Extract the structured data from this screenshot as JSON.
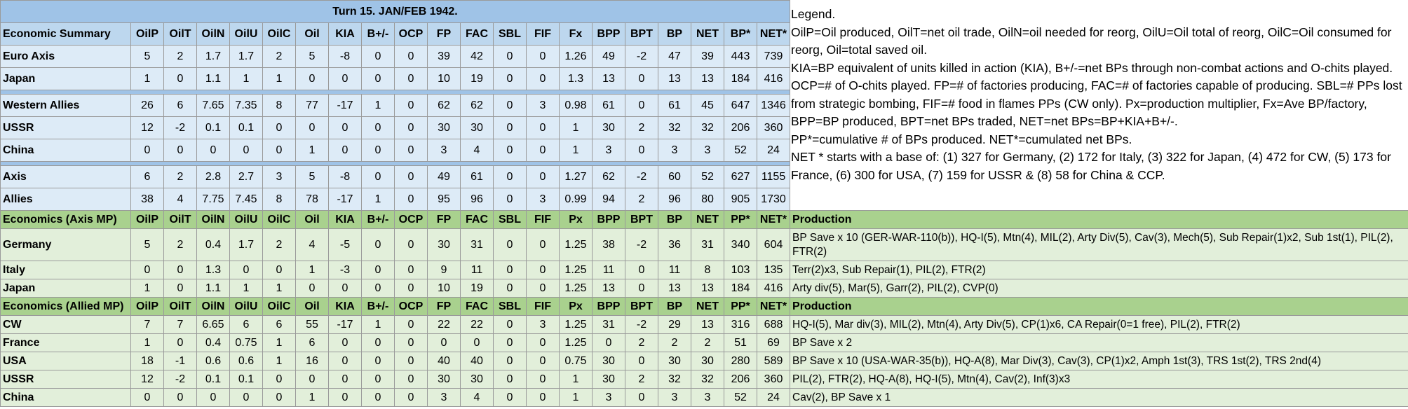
{
  "title": "Turn 15.  JAN/FEB 1942.",
  "legend": {
    "heading": "Legend.",
    "lines": [
      "OilP=Oil produced, OilT=net oil trade, OilN=oil needed for reorg, OilU=Oil total of reorg, OilC=Oil consumed for reorg, Oil=total saved oil.",
      "KIA=BP equivalent of units killed in action (KIA), B+/-=net BPs through non-combat actions and O-chits played.  OCP=# of O-chits played.  FP=# of factories producing, FAC=# of factories capable of producing.  SBL=# PPs lost from strategic bombing, FIF=# food in flames PPs (CW only).  Px=production multiplier,  Fx=Ave BP/factory, BPP=BP produced, BPT=net BPs traded, NET=net BPs=BP+KIA+B+/-.",
      "PP*=cumulative # of BPs produced.  NET*=cumulated net BPs.",
      "NET * starts with a base of:  (1) 327 for Germany, (2) 172 for Italy, (3) 322 for Japan, (4) 472 for CW, (5) 173 for France, (6) 300 for USA, (7) 159 for USSR & (8) 58 for China & CCP."
    ]
  },
  "summary": {
    "label": "Economic Summary",
    "columns": [
      "OilP",
      "OilT",
      "OilN",
      "OilU",
      "OilC",
      "Oil",
      "KIA",
      "B+/-",
      "OCP",
      "FP",
      "FAC",
      "SBL",
      "FIF",
      "Fx",
      "BPP",
      "BPT",
      "BP",
      "NET",
      "BP*",
      "NET*"
    ],
    "groups": [
      [
        {
          "name": "Euro Axis",
          "values": [
            "5",
            "2",
            "1.7",
            "1.7",
            "2",
            "5",
            "-8",
            "0",
            "0",
            "39",
            "42",
            "0",
            "0",
            "1.26",
            "49",
            "-2",
            "47",
            "39",
            "443",
            "739"
          ]
        },
        {
          "name": "Japan",
          "values": [
            "1",
            "0",
            "1.1",
            "1",
            "1",
            "0",
            "0",
            "0",
            "0",
            "10",
            "19",
            "0",
            "0",
            "1.3",
            "13",
            "0",
            "13",
            "13",
            "184",
            "416"
          ]
        }
      ],
      [
        {
          "name": "Western Allies",
          "values": [
            "26",
            "6",
            "7.65",
            "7.35",
            "8",
            "77",
            "-17",
            "1",
            "0",
            "62",
            "62",
            "0",
            "3",
            "0.98",
            "61",
            "0",
            "61",
            "45",
            "647",
            "1346"
          ]
        },
        {
          "name": "USSR",
          "values": [
            "12",
            "-2",
            "0.1",
            "0.1",
            "0",
            "0",
            "0",
            "0",
            "0",
            "30",
            "30",
            "0",
            "0",
            "1",
            "30",
            "2",
            "32",
            "32",
            "206",
            "360"
          ]
        },
        {
          "name": "China",
          "values": [
            "0",
            "0",
            "0",
            "0",
            "0",
            "1",
            "0",
            "0",
            "0",
            "3",
            "4",
            "0",
            "0",
            "1",
            "3",
            "0",
            "3",
            "3",
            "52",
            "24"
          ]
        }
      ],
      [
        {
          "name": "Axis",
          "values": [
            "6",
            "2",
            "2.8",
            "2.7",
            "3",
            "5",
            "-8",
            "0",
            "0",
            "49",
            "61",
            "0",
            "0",
            "1.27",
            "62",
            "-2",
            "60",
            "52",
            "627",
            "1155"
          ]
        },
        {
          "name": "Allies",
          "values": [
            "38",
            "4",
            "7.75",
            "7.45",
            "8",
            "78",
            "-17",
            "1",
            "0",
            "95",
            "96",
            "0",
            "3",
            "0.99",
            "94",
            "2",
            "96",
            "80",
            "905",
            "1730"
          ]
        }
      ]
    ]
  },
  "axis_mp": {
    "label": "Economics (Axis MP)",
    "columns": [
      "OilP",
      "OilT",
      "OilN",
      "OilU",
      "OilC",
      "Oil",
      "KIA",
      "B+/-",
      "OCP",
      "FP",
      "FAC",
      "SBL",
      "FIF",
      "Px",
      "BPP",
      "BPT",
      "BP",
      "NET",
      "PP*",
      "NET*"
    ],
    "production_label": "Production",
    "rows": [
      {
        "name": "Germany",
        "values": [
          "5",
          "2",
          "0.4",
          "1.7",
          "2",
          "4",
          "-5",
          "0",
          "0",
          "30",
          "31",
          "0",
          "0",
          "1.25",
          "38",
          "-2",
          "36",
          "31",
          "340",
          "604"
        ],
        "production": "BP Save x 10 (GER-WAR-110(b)), HQ-I(5), Mtn(4), MIL(2), Arty Div(5), Cav(3), Mech(5), Sub Repair(1)x2, Sub 1st(1), PIL(2), FTR(2)"
      },
      {
        "name": "Italy",
        "values": [
          "0",
          "0",
          "1.3",
          "0",
          "0",
          "1",
          "-3",
          "0",
          "0",
          "9",
          "11",
          "0",
          "0",
          "1.25",
          "11",
          "0",
          "11",
          "8",
          "103",
          "135"
        ],
        "production": "Terr(2)x3, Sub Repair(1), PIL(2), FTR(2)"
      },
      {
        "name": "Japan",
        "values": [
          "1",
          "0",
          "1.1",
          "1",
          "1",
          "0",
          "0",
          "0",
          "0",
          "10",
          "19",
          "0",
          "0",
          "1.25",
          "13",
          "0",
          "13",
          "13",
          "184",
          "416"
        ],
        "production": "Arty div(5), Mar(5), Garr(2), PIL(2), CVP(0)"
      }
    ]
  },
  "allied_mp": {
    "label": "Economics (Allied MP)",
    "columns": [
      "OilP",
      "OilT",
      "OilN",
      "OilU",
      "OilC",
      "Oil",
      "KIA",
      "B+/-",
      "OCP",
      "FP",
      "FAC",
      "SBL",
      "FIF",
      "Px",
      "BPP",
      "BPT",
      "BP",
      "NET",
      "PP*",
      "NET*"
    ],
    "production_label": "Production",
    "rows": [
      {
        "name": "CW",
        "values": [
          "7",
          "7",
          "6.65",
          "6",
          "6",
          "55",
          "-17",
          "1",
          "0",
          "22",
          "22",
          "0",
          "3",
          "1.25",
          "31",
          "-2",
          "29",
          "13",
          "316",
          "688"
        ],
        "production": "HQ-I(5), Mar div(3), MIL(2), Mtn(4), Arty Div(5), CP(1)x6, CA Repair(0=1 free), PIL(2), FTR(2)"
      },
      {
        "name": "France",
        "values": [
          "1",
          "0",
          "0.4",
          "0.75",
          "1",
          "6",
          "0",
          "0",
          "0",
          "0",
          "0",
          "0",
          "0",
          "1.25",
          "0",
          "2",
          "2",
          "2",
          "51",
          "69"
        ],
        "production": "BP Save x 2"
      },
      {
        "name": "USA",
        "values": [
          "18",
          "-1",
          "0.6",
          "0.6",
          "1",
          "16",
          "0",
          "0",
          "0",
          "40",
          "40",
          "0",
          "0",
          "0.75",
          "30",
          "0",
          "30",
          "30",
          "280",
          "589"
        ],
        "production": "BP Save x 10 (USA-WAR-35(b)), HQ-A(8), Mar Div(3), Cav(3), CP(1)x2, Amph 1st(3), TRS 1st(2), TRS 2nd(4)"
      },
      {
        "name": "USSR",
        "values": [
          "12",
          "-2",
          "0.1",
          "0.1",
          "0",
          "0",
          "0",
          "0",
          "0",
          "30",
          "30",
          "0",
          "0",
          "1",
          "30",
          "2",
          "32",
          "32",
          "206",
          "360"
        ],
        "production": "PIL(2), FTR(2), HQ-A(8), HQ-I(5), Mtn(4), Cav(2), Inf(3)x3"
      },
      {
        "name": "China",
        "values": [
          "0",
          "0",
          "0",
          "0",
          "0",
          "1",
          "0",
          "0",
          "0",
          "3",
          "4",
          "0",
          "0",
          "1",
          "3",
          "0",
          "3",
          "3",
          "52",
          "24"
        ],
        "production": "Cav(2), BP Save x 1"
      }
    ]
  }
}
